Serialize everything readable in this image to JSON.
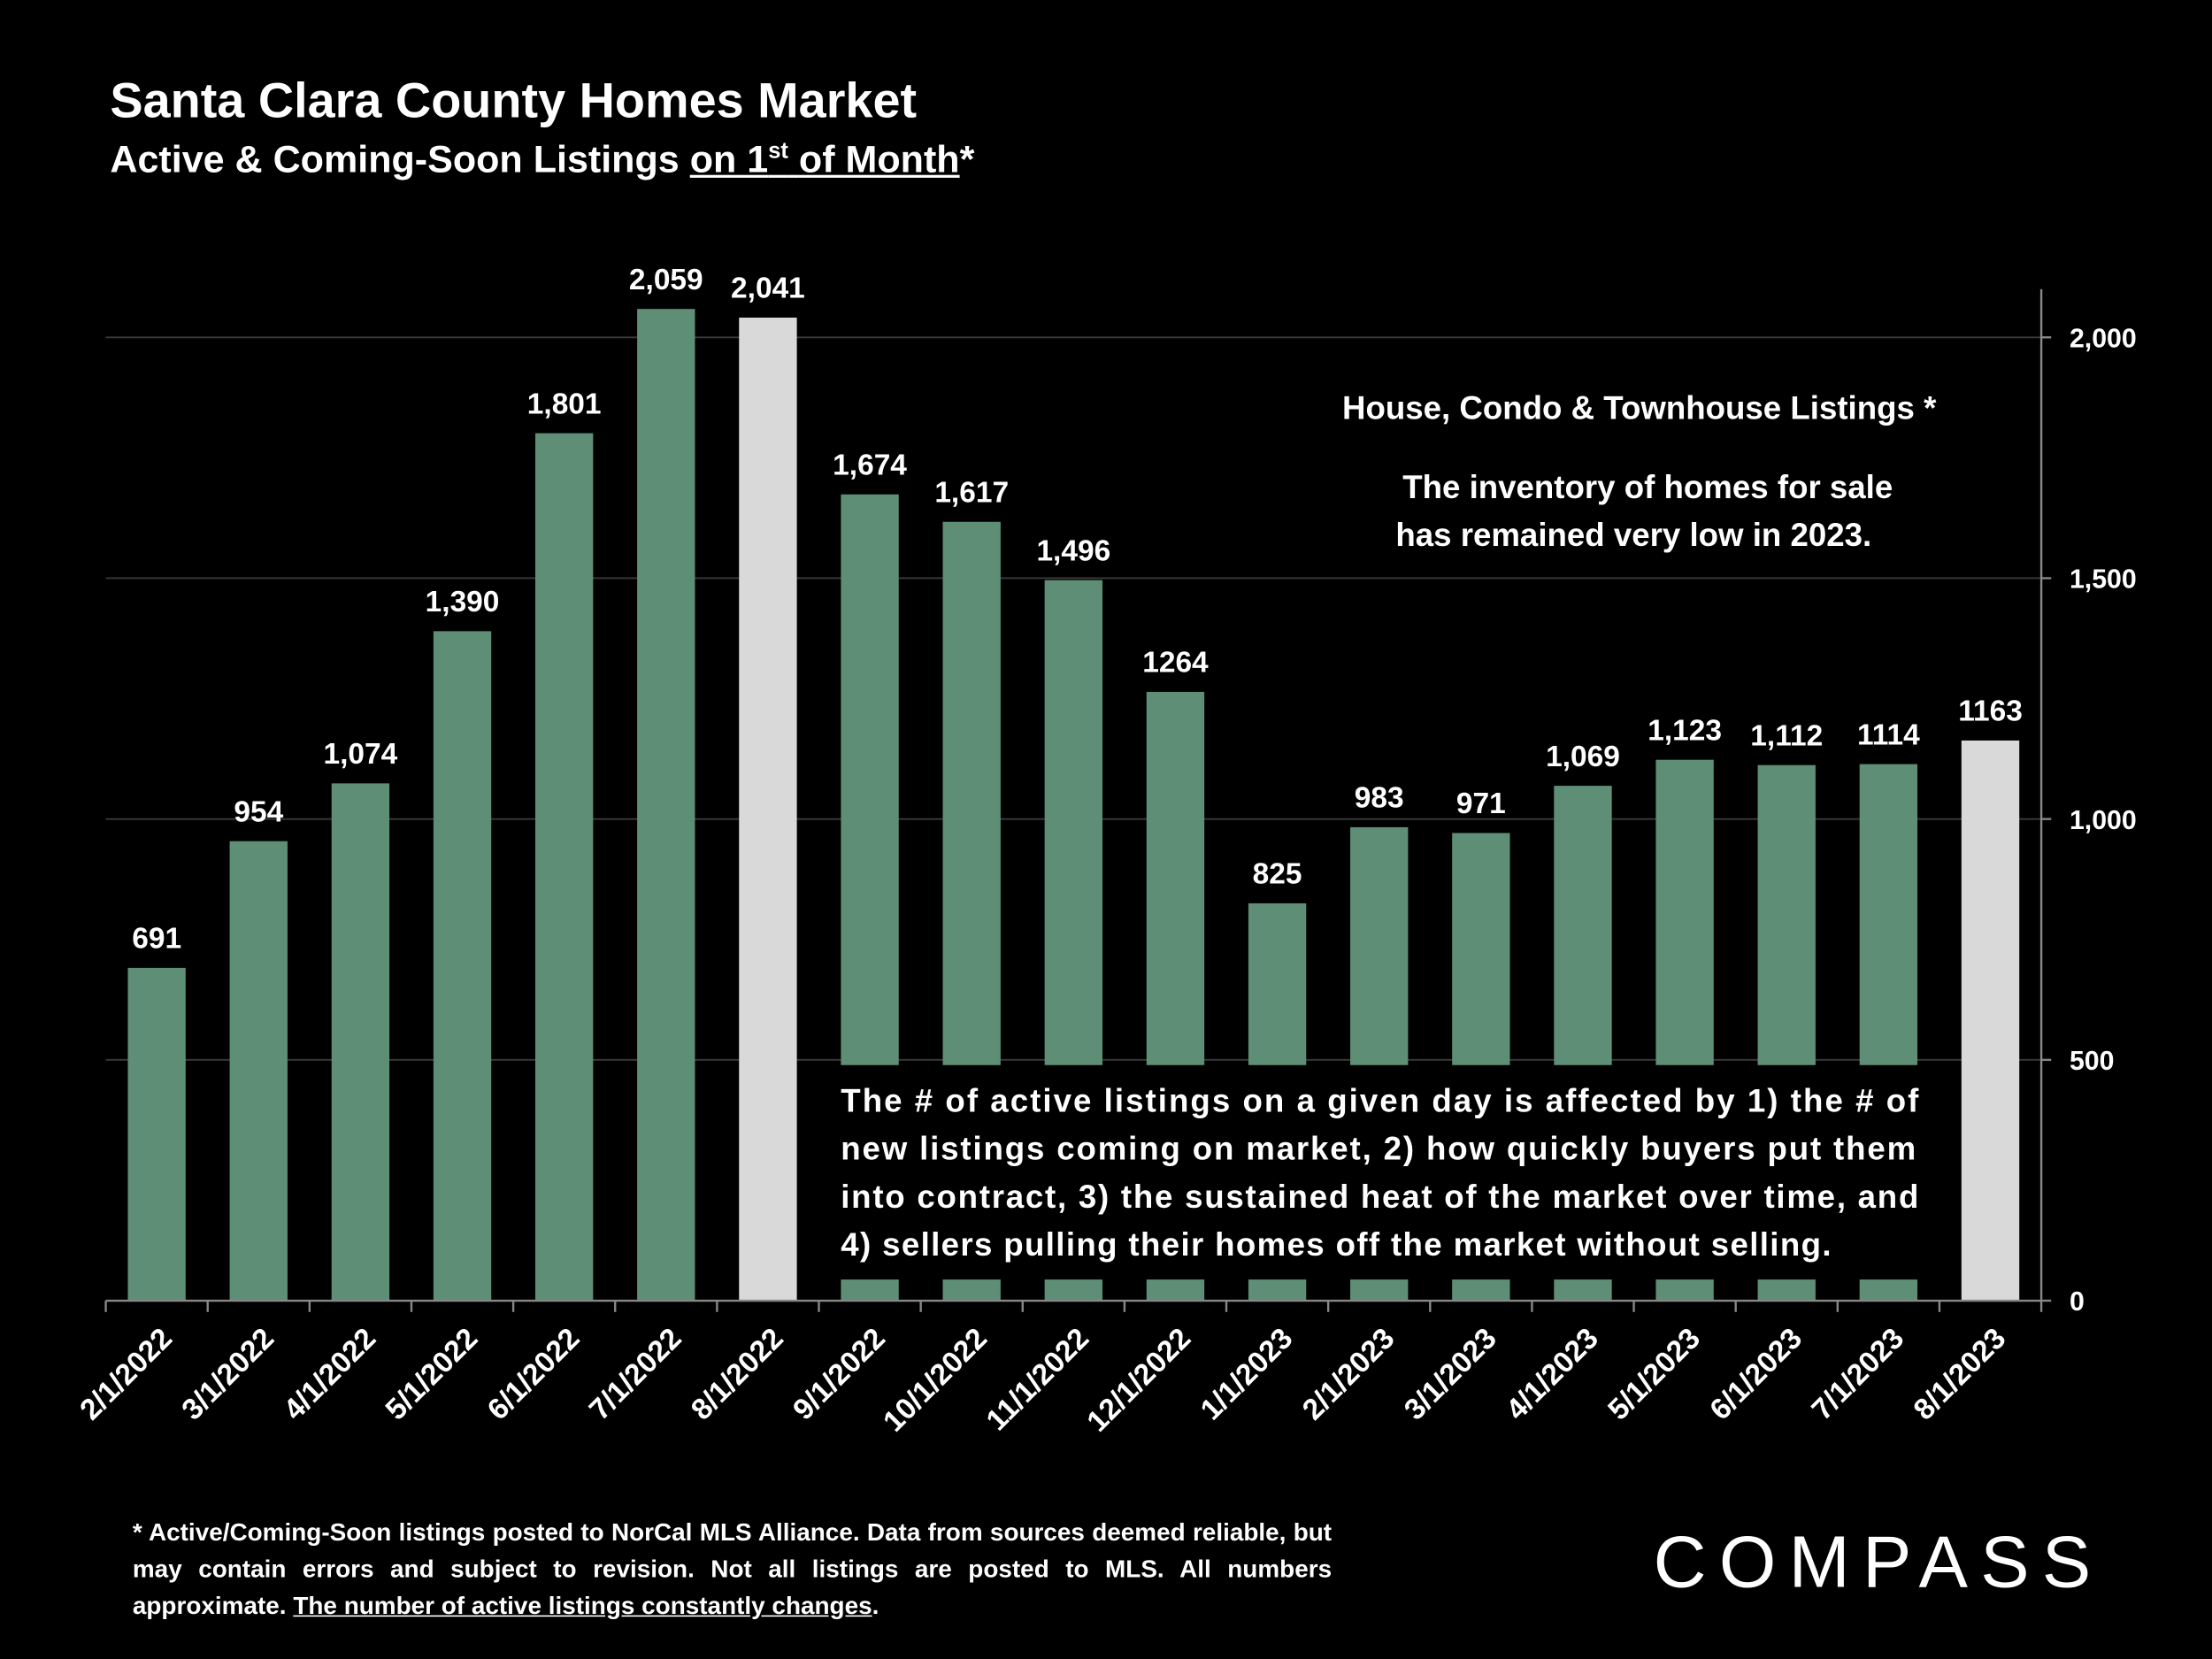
{
  "chart_data": {
    "type": "bar",
    "title": "Santa Clara County Homes Market",
    "subtitle": {
      "prefix": "Active & Coming-Soon Listings",
      "underlined": "on 1",
      "superscript": "st",
      "underlined_end": "of Month",
      "suffix": "*"
    },
    "categories": [
      "2/1/2022",
      "3/1/2022",
      "4/1/2022",
      "5/1/2022",
      "6/1/2022",
      "7/1/2022",
      "8/1/2022",
      "9/1/2022",
      "10/1/2022",
      "11/1/2022",
      "12/1/2022",
      "1/1/2023",
      "2/1/2023",
      "3/1/2023",
      "4/1/2023",
      "5/1/2023",
      "6/1/2023",
      "7/1/2023",
      "8/1/2023"
    ],
    "values": [
      691,
      954,
      1074,
      1390,
      1801,
      2059,
      2041,
      1674,
      1617,
      1496,
      1264,
      825,
      983,
      971,
      1069,
      1123,
      1112,
      1114,
      1163
    ],
    "value_labels": [
      "691",
      "954",
      "1,074",
      "1,390",
      "1,801",
      "2,059",
      "2,041",
      "1,674",
      "1,617",
      "1,496",
      "1264",
      "825",
      "983",
      "971",
      "1,069",
      "1,123",
      "1,112",
      "1114",
      "1163"
    ],
    "colors": [
      "#5e8e76",
      "#5e8e76",
      "#5e8e76",
      "#5e8e76",
      "#5e8e76",
      "#5e8e76",
      "#d9d9d9",
      "#5e8e76",
      "#5e8e76",
      "#5e8e76",
      "#5e8e76",
      "#5e8e76",
      "#5e8e76",
      "#5e8e76",
      "#5e8e76",
      "#5e8e76",
      "#5e8e76",
      "#5e8e76",
      "#d9d9d9"
    ],
    "ylim": [
      0,
      2100
    ],
    "yticks": [
      0,
      500,
      {
        "value": 1000,
        "label": "1,000"
      },
      {
        "value": 1500,
        "label": "1,500"
      },
      {
        "value": 2000,
        "label": "2,000"
      }
    ],
    "grid": true,
    "annotations": {
      "legend_note": "House, Condo & Townhouse Listings *",
      "inventory_note": [
        "The inventory of homes for sale",
        "has remained very low in 2023."
      ],
      "explanation": [
        "The # of active listings on a given day is affected by 1) the # of",
        "new listings coming on market, 2) how quickly buyers put them",
        "into contract, 3) the sustained heat of the market over time, and",
        "4) sellers pulling their homes off the market without selling."
      ]
    },
    "footnote": {
      "text": "* Active/Coming-Soon listings posted to NorCal MLS Alliance.  Data from sources deemed reliable, but may contain errors and subject to revision.  Not all listings are posted to MLS. All numbers approximate.",
      "underlined": "The number of active listings constantly changes",
      "end": "."
    },
    "logo": "COMPASS"
  }
}
